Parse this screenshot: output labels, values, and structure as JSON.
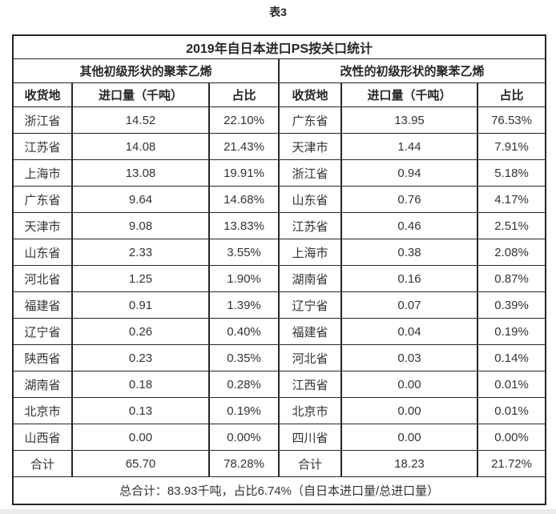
{
  "page": {
    "caption": "表3"
  },
  "table": {
    "title": "2019年自日本进口PS按关口统计",
    "footer": "总合计：83.93千吨，占比6.74%（自日本进口量/总进口量）",
    "groups": [
      {
        "header": "其他初级形状的聚苯乙烯",
        "columns": [
          "收货地",
          "进口量（千吨）",
          "占比"
        ],
        "rows": [
          [
            "浙江省",
            "14.52",
            "22.10%"
          ],
          [
            "江苏省",
            "14.08",
            "21.43%"
          ],
          [
            "上海市",
            "13.08",
            "19.91%"
          ],
          [
            "广东省",
            "9.64",
            "14.68%"
          ],
          [
            "天津市",
            "9.08",
            "13.83%"
          ],
          [
            "山东省",
            "2.33",
            "3.55%"
          ],
          [
            "河北省",
            "1.25",
            "1.90%"
          ],
          [
            "福建省",
            "0.91",
            "1.39%"
          ],
          [
            "辽宁省",
            "0.26",
            "0.40%"
          ],
          [
            "陕西省",
            "0.23",
            "0.35%"
          ],
          [
            "湖南省",
            "0.18",
            "0.28%"
          ],
          [
            "北京市",
            "0.13",
            "0.19%"
          ],
          [
            "山西省",
            "0.00",
            "0.00%"
          ],
          [
            "合计",
            "65.70",
            "78.28%"
          ]
        ]
      },
      {
        "header": "改性的初级形状的聚苯乙烯",
        "columns": [
          "收货地",
          "进口量（千吨）",
          "占比"
        ],
        "rows": [
          [
            "广东省",
            "13.95",
            "76.53%"
          ],
          [
            "天津市",
            "1.44",
            "7.91%"
          ],
          [
            "浙江省",
            "0.94",
            "5.18%"
          ],
          [
            "山东省",
            "0.76",
            "4.17%"
          ],
          [
            "江苏省",
            "0.46",
            "2.51%"
          ],
          [
            "上海市",
            "0.38",
            "2.08%"
          ],
          [
            "湖南省",
            "0.16",
            "0.87%"
          ],
          [
            "辽宁省",
            "0.07",
            "0.39%"
          ],
          [
            "福建省",
            "0.04",
            "0.19%"
          ],
          [
            "河北省",
            "0.03",
            "0.14%"
          ],
          [
            "江西省",
            "0.00",
            "0.01%"
          ],
          [
            "北京市",
            "0.00",
            "0.01%"
          ],
          [
            "四川省",
            "0.00",
            "0.00%"
          ],
          [
            "合计",
            "18.23",
            "21.72%"
          ]
        ]
      }
    ]
  },
  "colors": {
    "border": "#262626",
    "text": "#333333",
    "background": "#ffffff"
  }
}
